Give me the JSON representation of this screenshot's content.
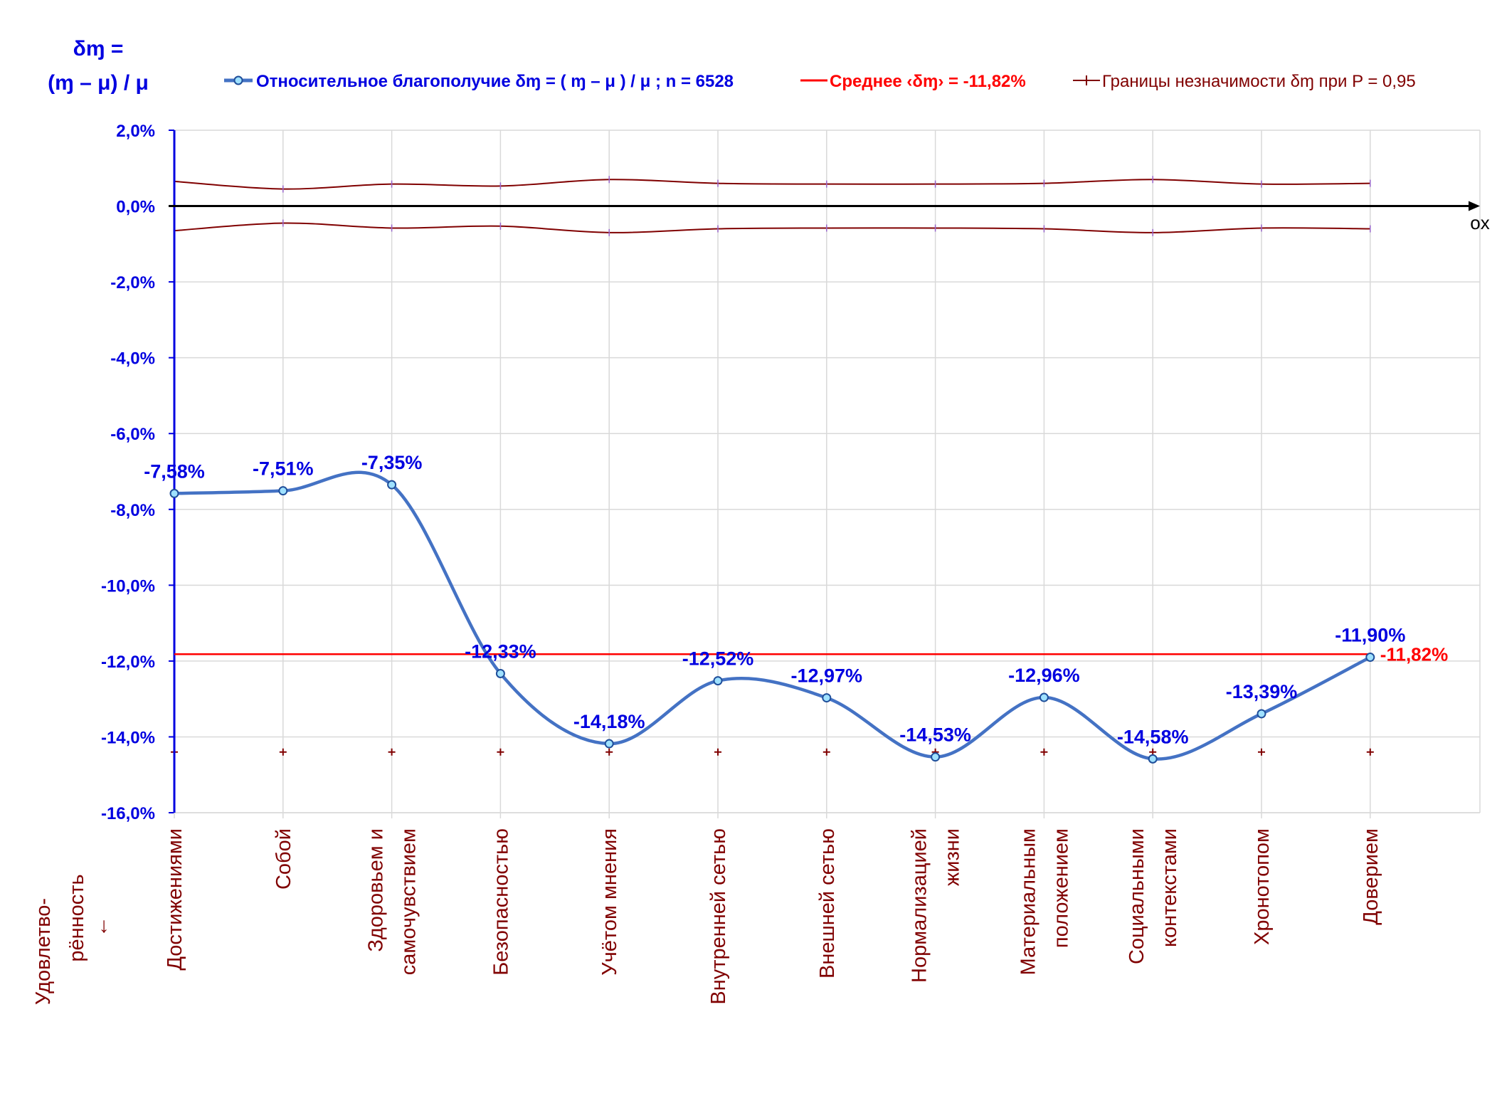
{
  "chart_data": {
    "type": "line",
    "y_axis_title_line1": "δɱ =",
    "y_axis_title_line2": "(ɱ – μ) / μ",
    "x_axis_name": "ox",
    "categories_axis_label_line1": "Удовлетво-",
    "categories_axis_label_line2": "рённость",
    "categories_axis_label_line3": "↓",
    "ylim": [
      -16,
      2
    ],
    "yticks": [
      2,
      0,
      -2,
      -4,
      -6,
      -8,
      -10,
      -12,
      -14,
      -16
    ],
    "ytick_labels": [
      "2,0%",
      "0,0%",
      "-2,0%",
      "-4,0%",
      "-6,0%",
      "-8,0%",
      "-10,0%",
      "-12,0%",
      "-14,0%",
      "-16,0%"
    ],
    "grid": true,
    "legend_position": "top",
    "categories": [
      [
        "Достижениями"
      ],
      [
        "Собой"
      ],
      [
        "Здоровьем и",
        "самочувствием"
      ],
      [
        "Безопасностью"
      ],
      [
        "Учётом мнения"
      ],
      [
        "Внутренней сетью"
      ],
      [
        "Внешней сетью"
      ],
      [
        "Нормализацией",
        "жизни"
      ],
      [
        "Материальным",
        "положением"
      ],
      [
        "Социальными",
        "контекстами"
      ],
      [
        "Хронотопом"
      ],
      [
        "Доверием"
      ]
    ],
    "series": [
      {
        "name": "Относительное благополучие δɱ = ( ɱ – μ ) / μ ; n = 6528",
        "color": "#4472c4",
        "values": [
          -7.58,
          -7.51,
          -7.35,
          -12.33,
          -14.18,
          -12.52,
          -12.97,
          -14.53,
          -12.96,
          -14.58,
          -13.39,
          -11.9
        ],
        "labels": [
          "-7,58%",
          "-7,51%",
          "-7,35%",
          "-12,33%",
          "-14,18%",
          "-12,52%",
          "-12,97%",
          "-14,53%",
          "-12,96%",
          "-14,58%",
          "-13,39%",
          "-11,90%"
        ]
      },
      {
        "name": "Среднее ‹δɱ› = -11,82%",
        "color": "#ff0000",
        "value": -11.82,
        "end_label": "-11,82%"
      },
      {
        "name": "Границы незначимости δɱ при P = 0,95",
        "color": "#800000",
        "upper": [
          0.65,
          0.45,
          0.58,
          0.53,
          0.7,
          0.6,
          0.58,
          0.58,
          0.6,
          0.7,
          0.58,
          0.6
        ],
        "lower": [
          -0.65,
          -0.45,
          -0.58,
          -0.53,
          -0.7,
          -0.6,
          -0.58,
          -0.58,
          -0.6,
          -0.7,
          -0.58,
          -0.6
        ],
        "marker_row_value": -14.4
      }
    ]
  }
}
